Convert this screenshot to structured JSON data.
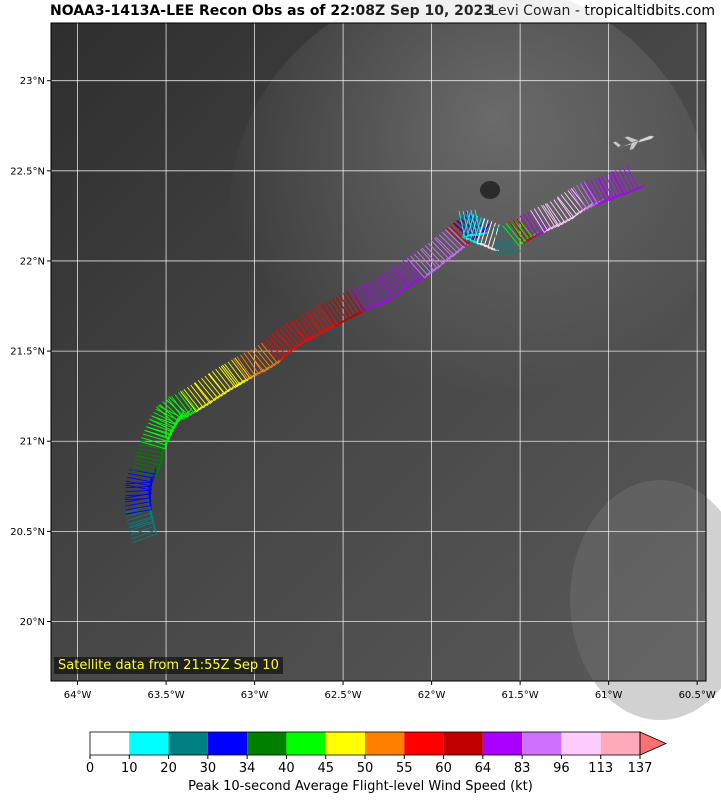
{
  "header": {
    "title": "NOAA3-1413A-LEE Recon Obs as of 22:08Z Sep 10, 2023",
    "credit": "Levi Cowan - tropicaltidbits.com"
  },
  "map": {
    "lon_range": [
      -64.15,
      -60.45
    ],
    "lat_range": [
      19.67,
      23.32
    ],
    "lon_ticks": [
      {
        "value": -64.0,
        "label": "64°W"
      },
      {
        "value": -63.5,
        "label": "63.5°W"
      },
      {
        "value": -63.0,
        "label": "63°W"
      },
      {
        "value": -62.5,
        "label": "62.5°W"
      },
      {
        "value": -62.0,
        "label": "62°W"
      },
      {
        "value": -61.5,
        "label": "61.5°W"
      },
      {
        "value": -61.0,
        "label": "61°W"
      },
      {
        "value": -60.5,
        "label": "60.5°W"
      }
    ],
    "lat_ticks": [
      {
        "value": 20.0,
        "label": "20°N"
      },
      {
        "value": 20.5,
        "label": "20.5°N"
      },
      {
        "value": 21.0,
        "label": "21°N"
      },
      {
        "value": 21.5,
        "label": "21.5°N"
      },
      {
        "value": 22.0,
        "label": "22°N"
      },
      {
        "value": 22.5,
        "label": "22.5°N"
      },
      {
        "value": 23.0,
        "label": "23°N"
      }
    ],
    "satellite_label": "Satellite data from 21:55Z Sep 10",
    "aircraft_icon": "aircraft-icon",
    "aircraft_position": {
      "lon": -60.86,
      "lat": 22.66
    }
  },
  "colorbar": {
    "bins": [
      {
        "lo": 0,
        "hi": 10,
        "color": "#ffffff"
      },
      {
        "lo": 10,
        "hi": 20,
        "color": "#00ffff"
      },
      {
        "lo": 20,
        "hi": 30,
        "color": "#008080"
      },
      {
        "lo": 30,
        "hi": 34,
        "color": "#0000ff"
      },
      {
        "lo": 34,
        "hi": 40,
        "color": "#008000"
      },
      {
        "lo": 40,
        "hi": 45,
        "color": "#00ff00"
      },
      {
        "lo": 45,
        "hi": 50,
        "color": "#ffff00"
      },
      {
        "lo": 50,
        "hi": 55,
        "color": "#ff8000"
      },
      {
        "lo": 55,
        "hi": 60,
        "color": "#ff0000"
      },
      {
        "lo": 60,
        "hi": 64,
        "color": "#c00000"
      },
      {
        "lo": 64,
        "hi": 83,
        "color": "#aa00ff"
      },
      {
        "lo": 83,
        "hi": 96,
        "color": "#d070ff"
      },
      {
        "lo": 96,
        "hi": 113,
        "color": "#ffccff"
      },
      {
        "lo": 113,
        "hi": 137,
        "color": "#ffaabb"
      }
    ],
    "ticks": [
      "0",
      "10",
      "20",
      "30",
      "34",
      "40",
      "45",
      "50",
      "55",
      "60",
      "64",
      "83",
      "96",
      "113",
      "137"
    ],
    "extend_color": "#ff7070",
    "label": "Peak 10-second Average Flight-level Wind Speed (kt)"
  },
  "flight_track": [
    {
      "lon": -63.7,
      "lat": 20.48,
      "kt": 22
    },
    {
      "lon": -63.72,
      "lat": 20.56,
      "kt": 24
    },
    {
      "lon": -63.73,
      "lat": 20.64,
      "kt": 31
    },
    {
      "lon": -63.73,
      "lat": 20.72,
      "kt": 32
    },
    {
      "lon": -63.72,
      "lat": 20.8,
      "kt": 31
    },
    {
      "lon": -63.68,
      "lat": 20.88,
      "kt": 36
    },
    {
      "lon": -63.66,
      "lat": 20.96,
      "kt": 37
    },
    {
      "lon": -63.63,
      "lat": 21.04,
      "kt": 41
    },
    {
      "lon": -63.6,
      "lat": 21.1,
      "kt": 42
    },
    {
      "lon": -63.57,
      "lat": 21.16,
      "kt": 43
    },
    {
      "lon": -63.52,
      "lat": 21.22,
      "kt": 44
    },
    {
      "lon": -63.45,
      "lat": 21.26,
      "kt": 43
    },
    {
      "lon": -63.38,
      "lat": 21.3,
      "kt": 46
    },
    {
      "lon": -63.3,
      "lat": 21.35,
      "kt": 47
    },
    {
      "lon": -63.22,
      "lat": 21.4,
      "kt": 48
    },
    {
      "lon": -63.15,
      "lat": 21.44,
      "kt": 49
    },
    {
      "lon": -63.08,
      "lat": 21.48,
      "kt": 52
    },
    {
      "lon": -63.0,
      "lat": 21.52,
      "kt": 53
    },
    {
      "lon": -62.92,
      "lat": 21.58,
      "kt": 57
    },
    {
      "lon": -62.84,
      "lat": 21.64,
      "kt": 58
    },
    {
      "lon": -62.75,
      "lat": 21.69,
      "kt": 59
    },
    {
      "lon": -62.66,
      "lat": 21.74,
      "kt": 58
    },
    {
      "lon": -62.58,
      "lat": 21.78,
      "kt": 61
    },
    {
      "lon": -62.5,
      "lat": 21.82,
      "kt": 60
    },
    {
      "lon": -62.42,
      "lat": 21.86,
      "kt": 66
    },
    {
      "lon": -62.34,
      "lat": 21.89,
      "kt": 70
    },
    {
      "lon": -62.26,
      "lat": 21.94,
      "kt": 72
    },
    {
      "lon": -62.18,
      "lat": 21.99,
      "kt": 75
    },
    {
      "lon": -62.1,
      "lat": 22.04,
      "kt": 84
    },
    {
      "lon": -62.02,
      "lat": 22.1,
      "kt": 86
    },
    {
      "lon": -61.94,
      "lat": 22.16,
      "kt": 88
    },
    {
      "lon": -61.88,
      "lat": 22.21,
      "kt": 62
    },
    {
      "lon": -61.84,
      "lat": 22.24,
      "kt": 33
    },
    {
      "lon": -61.8,
      "lat": 22.28,
      "kt": 18
    },
    {
      "lon": -61.74,
      "lat": 22.25,
      "kt": 12
    },
    {
      "lon": -61.66,
      "lat": 22.22,
      "kt": 8
    },
    {
      "lon": -61.6,
      "lat": 22.19,
      "kt": 22
    },
    {
      "lon": -61.56,
      "lat": 22.22,
      "kt": 42
    },
    {
      "lon": -61.52,
      "lat": 22.24,
      "kt": 62
    },
    {
      "lon": -61.46,
      "lat": 22.27,
      "kt": 75
    },
    {
      "lon": -61.4,
      "lat": 22.3,
      "kt": 98
    },
    {
      "lon": -61.33,
      "lat": 22.33,
      "kt": 100
    },
    {
      "lon": -61.25,
      "lat": 22.38,
      "kt": 98
    },
    {
      "lon": -61.18,
      "lat": 22.42,
      "kt": 90
    },
    {
      "lon": -61.1,
      "lat": 22.45,
      "kt": 80
    },
    {
      "lon": -61.02,
      "lat": 22.48,
      "kt": 72
    },
    {
      "lon": -60.94,
      "lat": 22.51,
      "kt": 70
    }
  ]
}
